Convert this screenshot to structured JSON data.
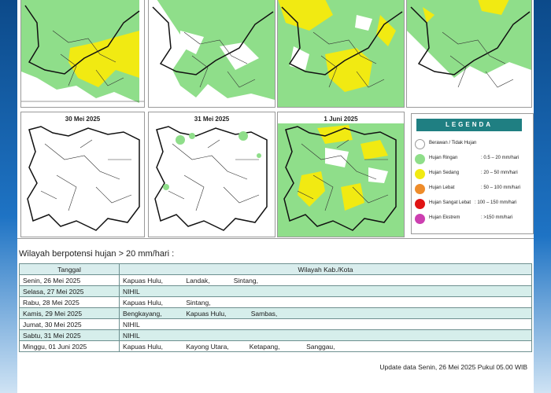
{
  "maps": {
    "top_row": [
      {
        "date": ""
      },
      {
        "date": ""
      },
      {
        "date": ""
      },
      {
        "date": ""
      }
    ],
    "bottom_row": [
      {
        "date": "30 Mei 2025"
      },
      {
        "date": "31 Mei 2025"
      },
      {
        "date": "1 Juni 2025"
      }
    ]
  },
  "legend": {
    "title": "LEGENDA",
    "items": [
      {
        "label": "Berawan / Tidak Hujan",
        "range": "",
        "color": "#ffffff"
      },
      {
        "label": "Hujan Ringan",
        "range": ": 0.5 – 20 mm/hari",
        "color": "#8fde8a"
      },
      {
        "label": "Hujan Sedang",
        "range": ": 20 – 50 mm/hari",
        "color": "#f1ea12"
      },
      {
        "label": "Hujan Lebat",
        "range": ": 50 – 100 mm/hari",
        "color": "#ee8c2a"
      },
      {
        "label": "Hujan Sangat Lebat",
        "range": ": 100 – 150 mm/hari",
        "color": "#e01414"
      },
      {
        "label": "Hujan Ekstrem",
        "range": ": >150 mm/hari",
        "color": "#cc3fb0"
      }
    ]
  },
  "section_title": "Wilayah berpotensi hujan > 20 mm/hari :",
  "table": {
    "headers": [
      "Tanggal",
      "Wilayah Kab./Kota"
    ],
    "rows": [
      {
        "date": "Senin, 26 Mei 2025",
        "regions": [
          "Kapuas Hulu,",
          "Landak,",
          "Sintang,"
        ]
      },
      {
        "date": "Selasa, 27 Mei 2025",
        "regions": [
          "NIHIL"
        ]
      },
      {
        "date": "Rabu, 28 Mei 2025",
        "regions": [
          "Kapuas Hulu,",
          "Sintang,"
        ]
      },
      {
        "date": "Kamis, 29 Mei 2025",
        "regions": [
          "Bengkayang,",
          "Kapuas Hulu,",
          "Sambas,"
        ]
      },
      {
        "date": "Jumat, 30 Mei 2025",
        "regions": [
          "NIHIL"
        ]
      },
      {
        "date": "Sabtu, 31 Mei 2025",
        "regions": [
          "NIHIL"
        ]
      },
      {
        "date": "Minggu, 01 Juni 2025",
        "regions": [
          "Kapuas Hulu,",
          "Kayong Utara,",
          "Ketapang,",
          "Sanggau,"
        ]
      }
    ]
  },
  "update_text": "Update data Senin, 26 Mei 2025 Pukul 05.00 WIB"
}
